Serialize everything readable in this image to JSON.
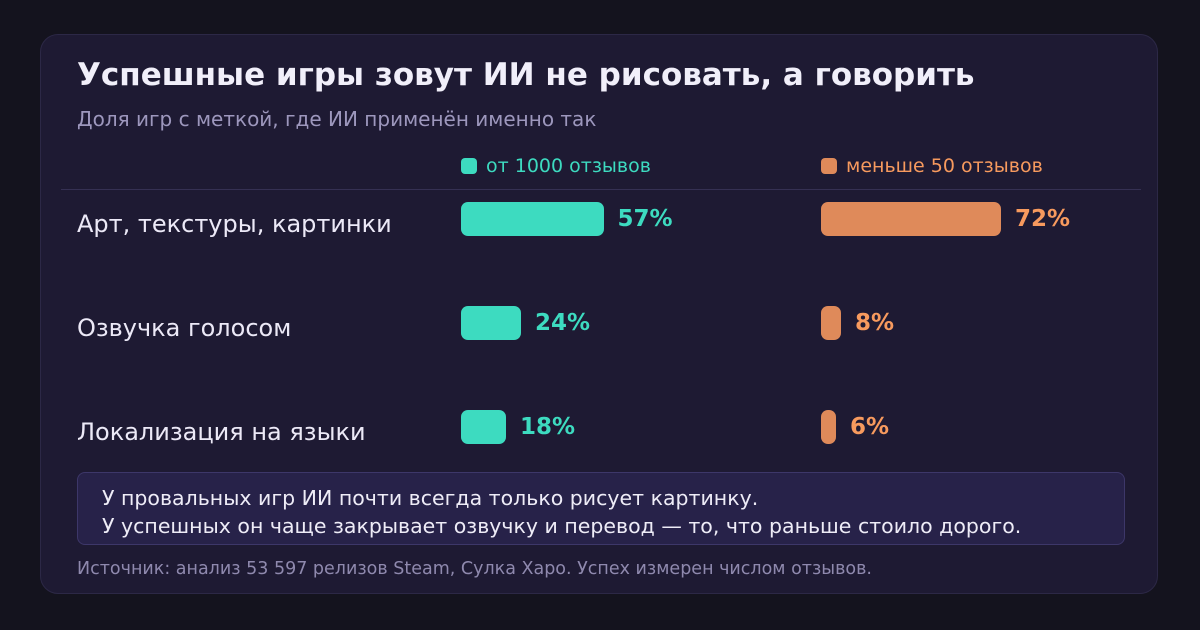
{
  "title": "Успешные игры зовут ИИ не рисовать, а говорить",
  "subtitle": "Доля игр с меткой, где ИИ применён именно так",
  "colors": {
    "background": "#14131e",
    "card": "#1e1a33",
    "series_popular": "#3ddbc0",
    "series_popular_bar": "#3ddbc0",
    "series_unpopular": "#f79a5e",
    "series_unpopular_bar": "#df8a5a"
  },
  "chart_data": {
    "type": "bar",
    "orientation": "horizontal",
    "title": "Успешные игры зовут ИИ не рисовать, а говорить",
    "subtitle": "Доля игр с меткой, где ИИ применён именно так",
    "unit": "%",
    "categories": [
      "Арт, текстуры, картинки",
      "Озвучка голосом",
      "Локализация на языки"
    ],
    "series": [
      {
        "name": "от 1000 отзывов",
        "values": [
          57,
          24,
          18
        ],
        "labels": [
          "57%",
          "24%",
          "18%"
        ],
        "color": "#3ddbc0"
      },
      {
        "name": "меньше 50 отзывов",
        "values": [
          72,
          8,
          6
        ],
        "labels": [
          "72%",
          "8%",
          "6%"
        ],
        "color": "#f79a5e"
      }
    ],
    "xlim": [
      0,
      100
    ],
    "legend": "top",
    "grid": false
  },
  "note": {
    "line1": "У провальных игр ИИ почти всегда только рисует картинку.",
    "line2": "У успешных он чаще закрывает озвучку и перевод — то, что раньше стоило дорого."
  },
  "source": "Источник: анализ 53 597 релизов Steam, Сулка Харо. Успех измерен числом отзывов."
}
